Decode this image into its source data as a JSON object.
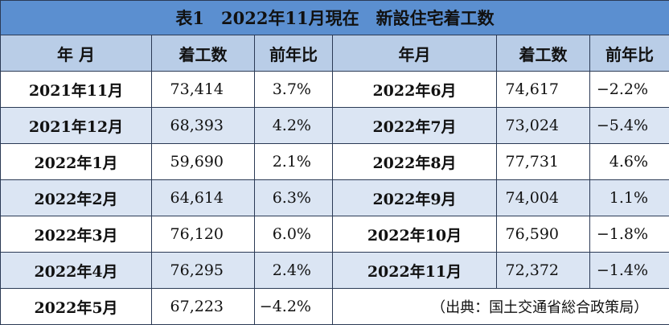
{
  "title": "表1　2022年11月現在　新設住宅着工数",
  "headers": {
    "month_left": "年 月",
    "starts_left": "着工数",
    "ratio_left": "前年比",
    "month_right": "年月",
    "starts_right": "着工数",
    "ratio_right": "前年比"
  },
  "rows": [
    {
      "left_month": "2021年11月",
      "left_starts": "73,414",
      "left_ratio": "3.7%",
      "right_month": "2022年6月",
      "right_starts": "74,617",
      "right_ratio": "−2.2%"
    },
    {
      "left_month": "2021年12月",
      "left_starts": "68,393",
      "left_ratio": "4.2%",
      "right_month": "2022年7月",
      "right_starts": "73,024",
      "right_ratio": "−5.4%"
    },
    {
      "left_month": "2022年1月",
      "left_starts": "59,690",
      "left_ratio": "2.1%",
      "right_month": "2022年8月",
      "right_starts": "77,731",
      "right_ratio": "4.6%"
    },
    {
      "left_month": "2022年2月",
      "left_starts": "64,614",
      "left_ratio": "6.3%",
      "right_month": "2022年9月",
      "right_starts": "74,004",
      "right_ratio": "1.1%"
    },
    {
      "left_month": "2022年3月",
      "left_starts": "76,120",
      "left_ratio": "6.0%",
      "right_month": "2022年10月",
      "right_starts": "76,590",
      "right_ratio": "−1.8%"
    },
    {
      "left_month": "2022年4月",
      "left_starts": "76,295",
      "left_ratio": "2.4%",
      "right_month": "2022年11月",
      "right_starts": "72,372",
      "right_ratio": "−1.4%"
    },
    {
      "left_month": "2022年5月",
      "left_starts": "67,223",
      "left_ratio": "−4.2%"
    }
  ],
  "source": "（出典：国土交通省総合政策局）"
}
